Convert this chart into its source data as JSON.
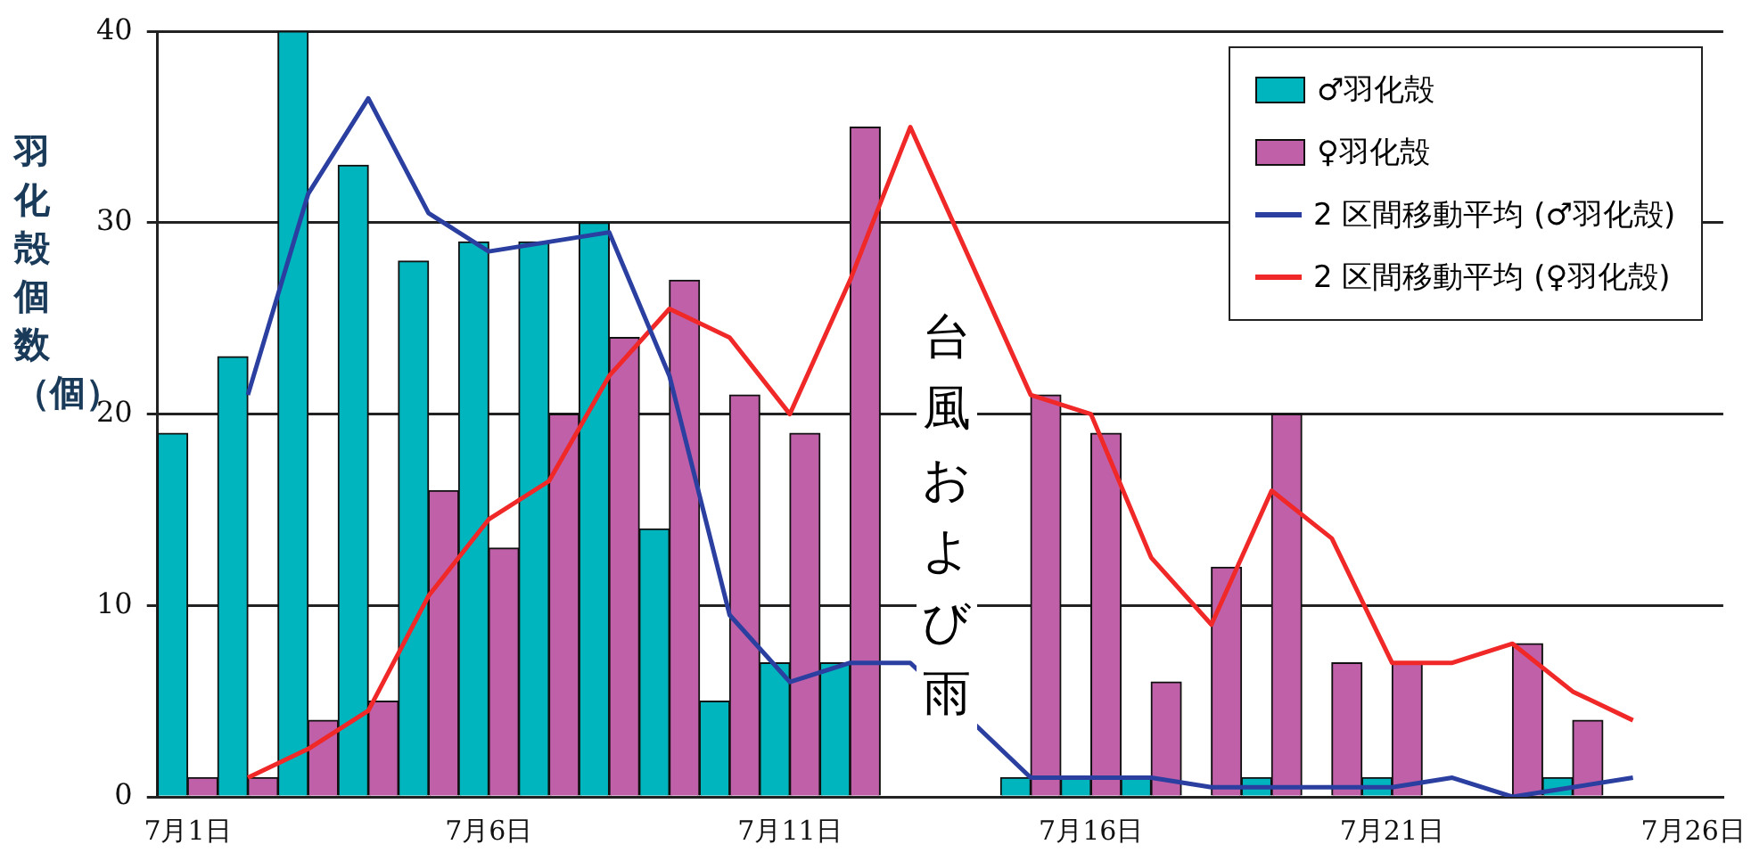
{
  "chart_data": {
    "type": "bar",
    "ylabel": "羽化殻個数（個）",
    "categories": [
      "7月1日",
      null,
      null,
      null,
      null,
      "7月6日",
      null,
      null,
      null,
      null,
      "7月11日",
      null,
      null,
      null,
      null,
      "7月16日",
      null,
      null,
      null,
      null,
      "7月21日",
      null,
      null,
      null,
      null,
      "7月26日"
    ],
    "series": [
      {
        "name": "♂羽化殻",
        "color": "#00b5be",
        "values": [
          19,
          23,
          40,
          33,
          28,
          29,
          29,
          30,
          14,
          5,
          7,
          7,
          null,
          null,
          1,
          1,
          1,
          0,
          1,
          0,
          1,
          0,
          0,
          1,
          0,
          0
        ]
      },
      {
        "name": "♀羽化殻",
        "color": "#c060a8",
        "values": [
          1,
          1,
          4,
          5,
          16,
          13,
          20,
          24,
          27,
          21,
          19,
          35,
          null,
          null,
          21,
          19,
          6,
          12,
          20,
          7,
          7,
          0,
          8,
          4,
          0,
          0
        ]
      },
      {
        "type": "line",
        "name": "2 区間移動平均 (♂羽化殻)",
        "color": "#2a3fa0",
        "values": [
          null,
          21,
          31.5,
          36.5,
          30.5,
          28.5,
          29,
          29.5,
          22,
          9.5,
          6,
          7,
          7,
          null,
          1,
          1,
          1,
          0.5,
          0.5,
          0.5,
          0.5,
          1,
          0,
          0.5,
          1,
          null
        ]
      },
      {
        "type": "line",
        "name": "2 区間移動平均 (♀羽化殻)",
        "color": "#f02828",
        "values": [
          null,
          1,
          2.5,
          4.5,
          10.5,
          14.5,
          16.5,
          22,
          25.5,
          24,
          20,
          27,
          35,
          null,
          21,
          20,
          12.5,
          9,
          16,
          13.5,
          7,
          7,
          8,
          5.5,
          4,
          null
        ]
      }
    ],
    "ylim": [
      0,
      40
    ],
    "yticks": [
      0,
      10,
      20,
      30,
      40
    ],
    "grid": "y",
    "legend": "top right",
    "marker": "none",
    "line_style": "solid",
    "annotations": [
      "台風および雨"
    ]
  }
}
